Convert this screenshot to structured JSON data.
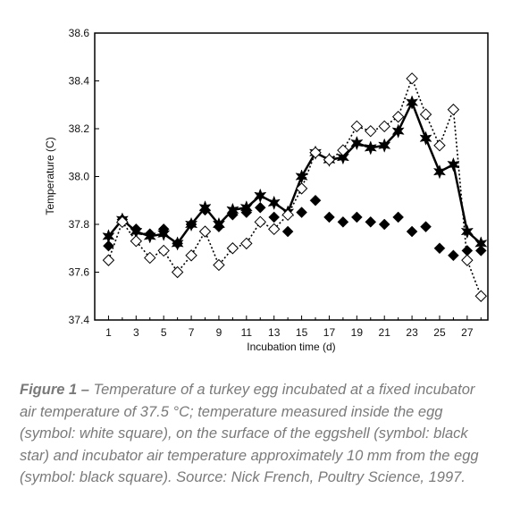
{
  "chart_data": {
    "type": "line",
    "xlabel": "Incubation time (d)",
    "ylabel": "Temperature (C)",
    "xlim": [
      0,
      28.5
    ],
    "ylim": [
      37.4,
      38.6
    ],
    "xticks": [
      1,
      3,
      5,
      7,
      9,
      11,
      13,
      15,
      17,
      19,
      21,
      23,
      25,
      27
    ],
    "yticks": [
      37.4,
      37.6,
      37.8,
      38.0,
      38.2,
      38.4,
      38.6
    ],
    "ytick_labels": [
      "37.4",
      "37.6",
      "37.8",
      "38.0",
      "38.2",
      "38.4",
      "38.6"
    ],
    "xtick_labels": [
      "1",
      "3",
      "5",
      "7",
      "9",
      "11",
      "13",
      "15",
      "17",
      "19",
      "21",
      "23",
      "25",
      "27"
    ],
    "grid": false,
    "series": [
      {
        "marker": "open-diamond",
        "line": "dotted",
        "x": [
          1,
          2,
          3,
          4,
          5,
          6,
          7,
          8,
          9,
          10,
          11,
          12,
          13,
          14,
          15,
          16,
          17,
          18,
          19,
          20,
          21,
          22,
          23,
          24,
          25,
          26,
          27,
          28
        ],
        "y": [
          37.65,
          37.81,
          37.73,
          37.66,
          37.69,
          37.6,
          37.67,
          37.77,
          37.63,
          37.7,
          37.72,
          37.81,
          37.78,
          37.84,
          37.95,
          38.1,
          38.07,
          38.11,
          38.21,
          38.19,
          38.21,
          38.25,
          38.41,
          38.26,
          38.13,
          38.28,
          37.65,
          37.5
        ]
      },
      {
        "marker": "filled-star",
        "line": "solid",
        "x": [
          1,
          2,
          3,
          4,
          5,
          6,
          7,
          8,
          9,
          10,
          11,
          12,
          13,
          14,
          15,
          16,
          17,
          18,
          19,
          20,
          21,
          22,
          23,
          24,
          25,
          26,
          27,
          28
        ],
        "y": [
          37.75,
          37.82,
          37.77,
          37.75,
          37.76,
          37.72,
          37.8,
          37.87,
          37.8,
          37.86,
          37.87,
          37.92,
          37.89,
          37.85,
          38.0,
          38.1,
          38.07,
          38.08,
          38.14,
          38.12,
          38.13,
          38.19,
          38.31,
          38.16,
          38.02,
          38.05,
          37.77,
          37.72
        ]
      },
      {
        "marker": "filled-diamond",
        "line": "none",
        "x": [
          1,
          2,
          3,
          4,
          5,
          6,
          7,
          8,
          9,
          10,
          11,
          12,
          13,
          14,
          15,
          16,
          17,
          18,
          19,
          20,
          21,
          22,
          23,
          24,
          25,
          26,
          27,
          28
        ],
        "y": [
          37.71,
          37.82,
          37.78,
          37.76,
          37.78,
          37.72,
          37.8,
          37.86,
          37.79,
          37.84,
          37.85,
          37.87,
          37.83,
          37.77,
          37.85,
          37.9,
          37.83,
          37.81,
          37.83,
          37.81,
          37.8,
          37.83,
          37.77,
          37.79,
          37.7,
          37.67,
          37.69,
          37.69
        ]
      }
    ]
  },
  "caption": {
    "lead": "Figure 1 –",
    "text": " Temperature of a turkey egg incubated at a fixed incubator air temperature of 37.5 °C; temperature measured inside the egg (symbol: white square), on the surface of the eggshell (symbol: black star) and incubator air temperature approximately 10 mm from the egg (symbol: black square). Source: Nick French, Poultry Science, 1997."
  }
}
